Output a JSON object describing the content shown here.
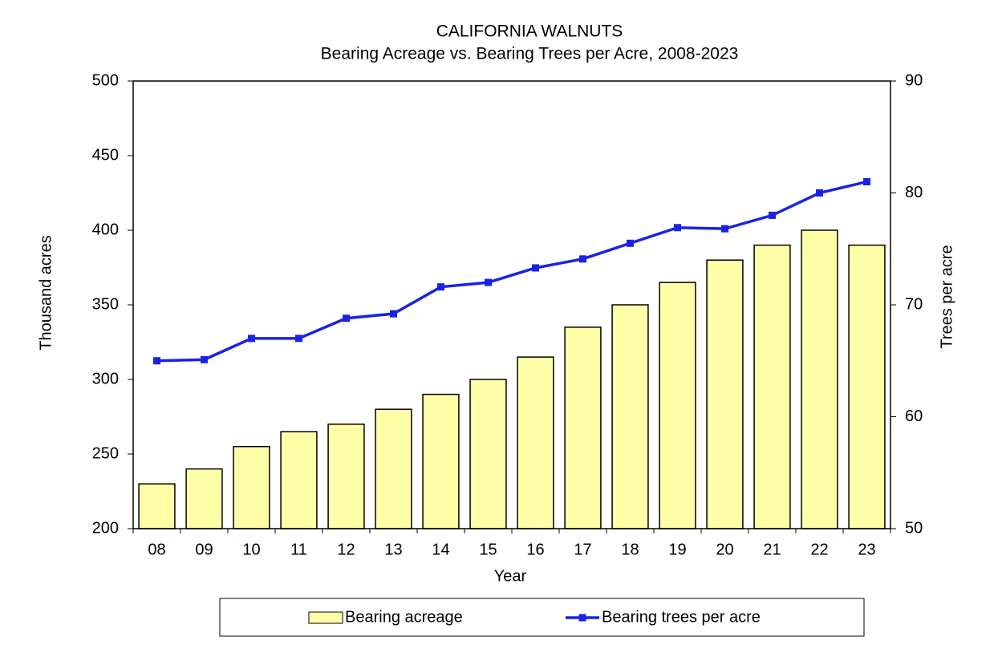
{
  "chart_data": {
    "type": "bar_line",
    "title": "CALIFORNIA  WALNUTS",
    "subtitle": "Bearing Acreage vs. Bearing Trees per Acre, 2008-2023",
    "xlabel": "Year",
    "ylabel": "Thousand acres",
    "y2label": "Trees per acre",
    "categories": [
      "08",
      "09",
      "10",
      "11",
      "12",
      "13",
      "14",
      "15",
      "16",
      "17",
      "18",
      "19",
      "20",
      "21",
      "22",
      "23"
    ],
    "series": [
      {
        "name": "Bearing acreage",
        "type": "bar",
        "color": "#ffffa8",
        "values": [
          230,
          240,
          255,
          265,
          270,
          280,
          290,
          300,
          315,
          335,
          350,
          365,
          380,
          390,
          400,
          390
        ]
      },
      {
        "name": "Bearing trees per acre",
        "type": "line",
        "axis": "y2",
        "color": "#1a22e6",
        "values": [
          65.0,
          65.1,
          67.0,
          67.0,
          68.8,
          69.2,
          71.6,
          72.0,
          73.3,
          74.1,
          75.5,
          76.9,
          76.8,
          78.0,
          80.0,
          81.0
        ]
      }
    ],
    "ylim": [
      200,
      500
    ],
    "yticks": [
      200,
      250,
      300,
      350,
      400,
      450,
      500
    ],
    "y2lim": [
      50,
      90
    ],
    "y2ticks": [
      50,
      60,
      70,
      80,
      90
    ],
    "grid": false,
    "legend": "bottom"
  }
}
